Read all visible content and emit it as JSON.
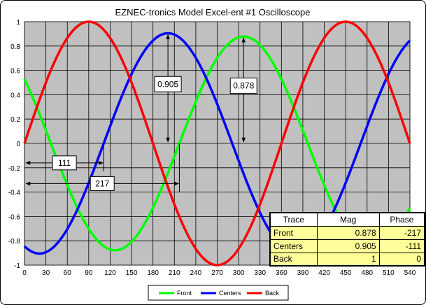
{
  "chart_data": {
    "type": "line",
    "title": "EZNEC-tronics  Model Excel-ent #1 Oscilloscope",
    "xlabel": "",
    "ylabel": "",
    "xlim": [
      0,
      540
    ],
    "ylim": [
      -1,
      1
    ],
    "x_ticks": [
      "0",
      "30",
      "60",
      "90",
      "120",
      "150",
      "180",
      "210",
      "240",
      "270",
      "300",
      "330",
      "360",
      "390",
      "420",
      "450",
      "480",
      "510",
      "540"
    ],
    "y_ticks": [
      "1",
      "0.8",
      "0.6",
      "0.4",
      "0.2",
      "0",
      "-0.2",
      "-0.4",
      "-0.6",
      "-0.8",
      "-1"
    ],
    "grid": true,
    "legend_position": "bottom",
    "series": [
      {
        "name": "Front",
        "color": "#00ff00",
        "amplitude": 0.878,
        "phase_deg": -217
      },
      {
        "name": "Centers",
        "color": "#0000ff",
        "amplitude": 0.905,
        "phase_deg": -111
      },
      {
        "name": "Back",
        "color": "#ff0000",
        "amplitude": 1,
        "phase_deg": 0
      }
    ],
    "annotations": {
      "peak_centers": {
        "label": "0.905",
        "x": 201,
        "y_top": 0.905,
        "y_bottom": 0
      },
      "peak_front": {
        "label": "0.878",
        "x": 307,
        "y_top": 0.878,
        "y_bottom": 0
      },
      "shift_centers": {
        "label": "111",
        "x_start": 0,
        "x_end": 111,
        "y": -0.16
      },
      "shift_front": {
        "label": "217",
        "x_start": 0,
        "x_end": 217,
        "y": -0.33
      }
    },
    "table": {
      "headers": [
        "Trace",
        "Mag",
        "Phase"
      ],
      "rows": [
        [
          "Front",
          "0.878",
          "-217"
        ],
        [
          "Centers",
          "0.905",
          "-111"
        ],
        [
          "Back",
          "1",
          "0"
        ]
      ]
    }
  }
}
